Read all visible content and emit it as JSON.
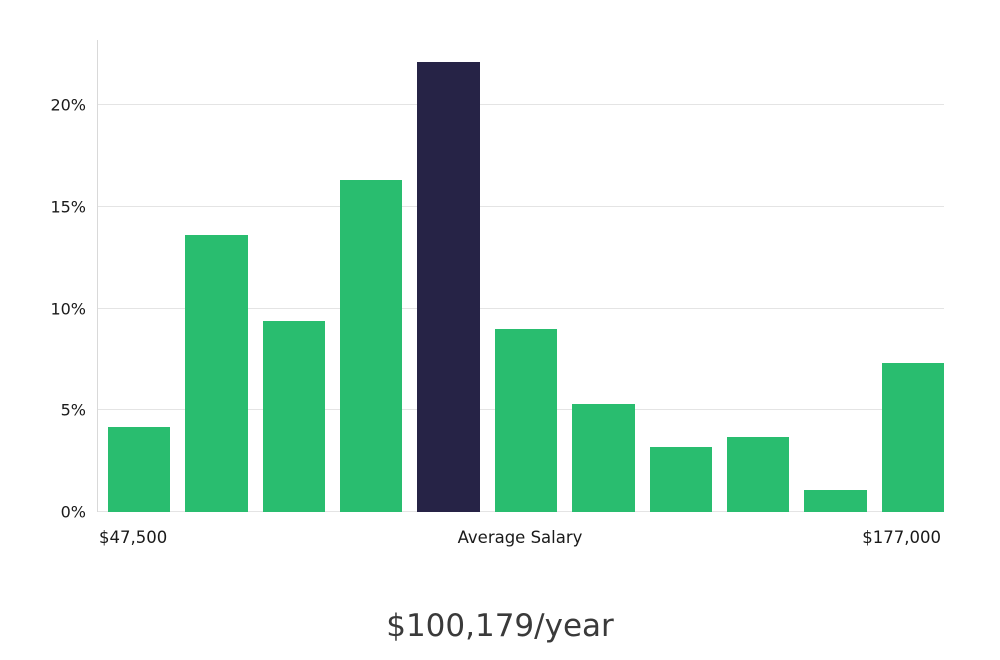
{
  "chart_data": {
    "type": "bar",
    "description": "Salary distribution histogram with average-salary bin highlighted",
    "values": [
      4.2,
      13.6,
      9.4,
      16.3,
      22.1,
      9.0,
      5.3,
      3.2,
      3.7,
      1.1,
      7.3
    ],
    "highlight_index": 4,
    "yticks": [
      0,
      5,
      10,
      15,
      20
    ],
    "ytick_labels": [
      "0%",
      "5%",
      "10%",
      "15%",
      "20%"
    ],
    "ylim": [
      0,
      23.2
    ],
    "xlabels": {
      "left": "$47,500",
      "center": "Average Salary",
      "right": "$177,000"
    },
    "title": "$100,179/year",
    "grid": true,
    "legend": false,
    "colors": {
      "bar": "#29bd6f",
      "highlight": "#262346",
      "gridline": "#e4e4e4",
      "axis_line": "#d9d9d9",
      "tick_text": "#1a1a1a",
      "title_text": "#3a3a3a"
    }
  }
}
